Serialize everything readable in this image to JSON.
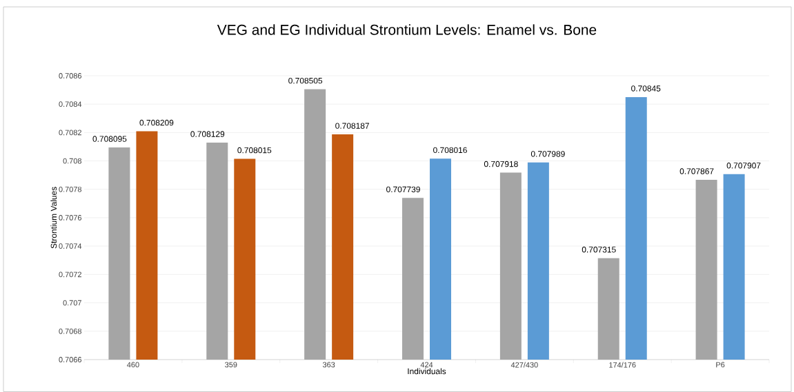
{
  "chart_data": {
    "type": "bar",
    "title": "VEG and EG Individual Strontium Levels: Enamel vs. Bone",
    "xlabel": "Individuals",
    "ylabel": "Strontium Values",
    "categories": [
      "460",
      "359",
      "363",
      "424",
      "427/430",
      "174/176",
      "P6"
    ],
    "series": [
      {
        "color": "#a5a5a5",
        "values": [
          0.708095,
          0.708129,
          0.708505,
          0.707739,
          0.707918,
          0.707315,
          0.707867
        ]
      },
      {
        "colors": [
          "#c55a11",
          "#c55a11",
          "#c55a11",
          "#5b9bd5",
          "#5b9bd5",
          "#5b9bd5",
          "#5b9bd5"
        ],
        "values": [
          0.708209,
          0.708015,
          0.708187,
          0.708016,
          0.707989,
          0.70845,
          0.707907
        ]
      }
    ],
    "ylim": [
      0.7066,
      0.7086
    ],
    "yticks": [
      0.7066,
      0.7068,
      0.707,
      0.7072,
      0.7074,
      0.7076,
      0.7078,
      0.708,
      0.7082,
      0.7084,
      0.7086
    ],
    "grid": "y",
    "data_labels": true
  }
}
